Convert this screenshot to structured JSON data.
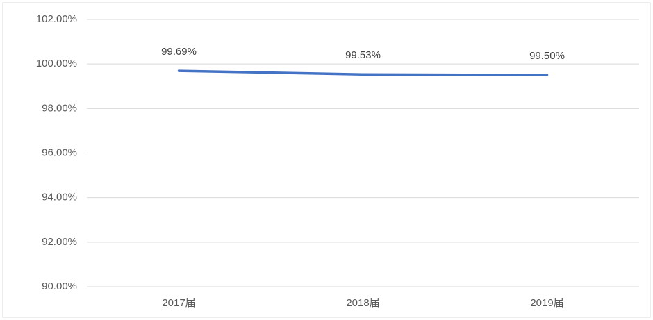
{
  "chart_data": {
    "type": "line",
    "categories": [
      "2017届",
      "2018届",
      "2019届"
    ],
    "series": [
      {
        "color": "#4472c4",
        "values": [
          99.69,
          99.53,
          99.5
        ],
        "value_labels": [
          "99.69%",
          "99.53%",
          "99.50%"
        ]
      }
    ],
    "ylim": [
      90,
      102
    ],
    "yticks": [
      {
        "value": 90,
        "label": "90.00%"
      },
      {
        "value": 92,
        "label": "92.00%"
      },
      {
        "value": 94,
        "label": "94.00%"
      },
      {
        "value": 96,
        "label": "96.00%"
      },
      {
        "value": 98,
        "label": "98.00%"
      },
      {
        "value": 100,
        "label": "100.00%"
      },
      {
        "value": 102,
        "label": "102.00%"
      }
    ],
    "grid": true
  }
}
